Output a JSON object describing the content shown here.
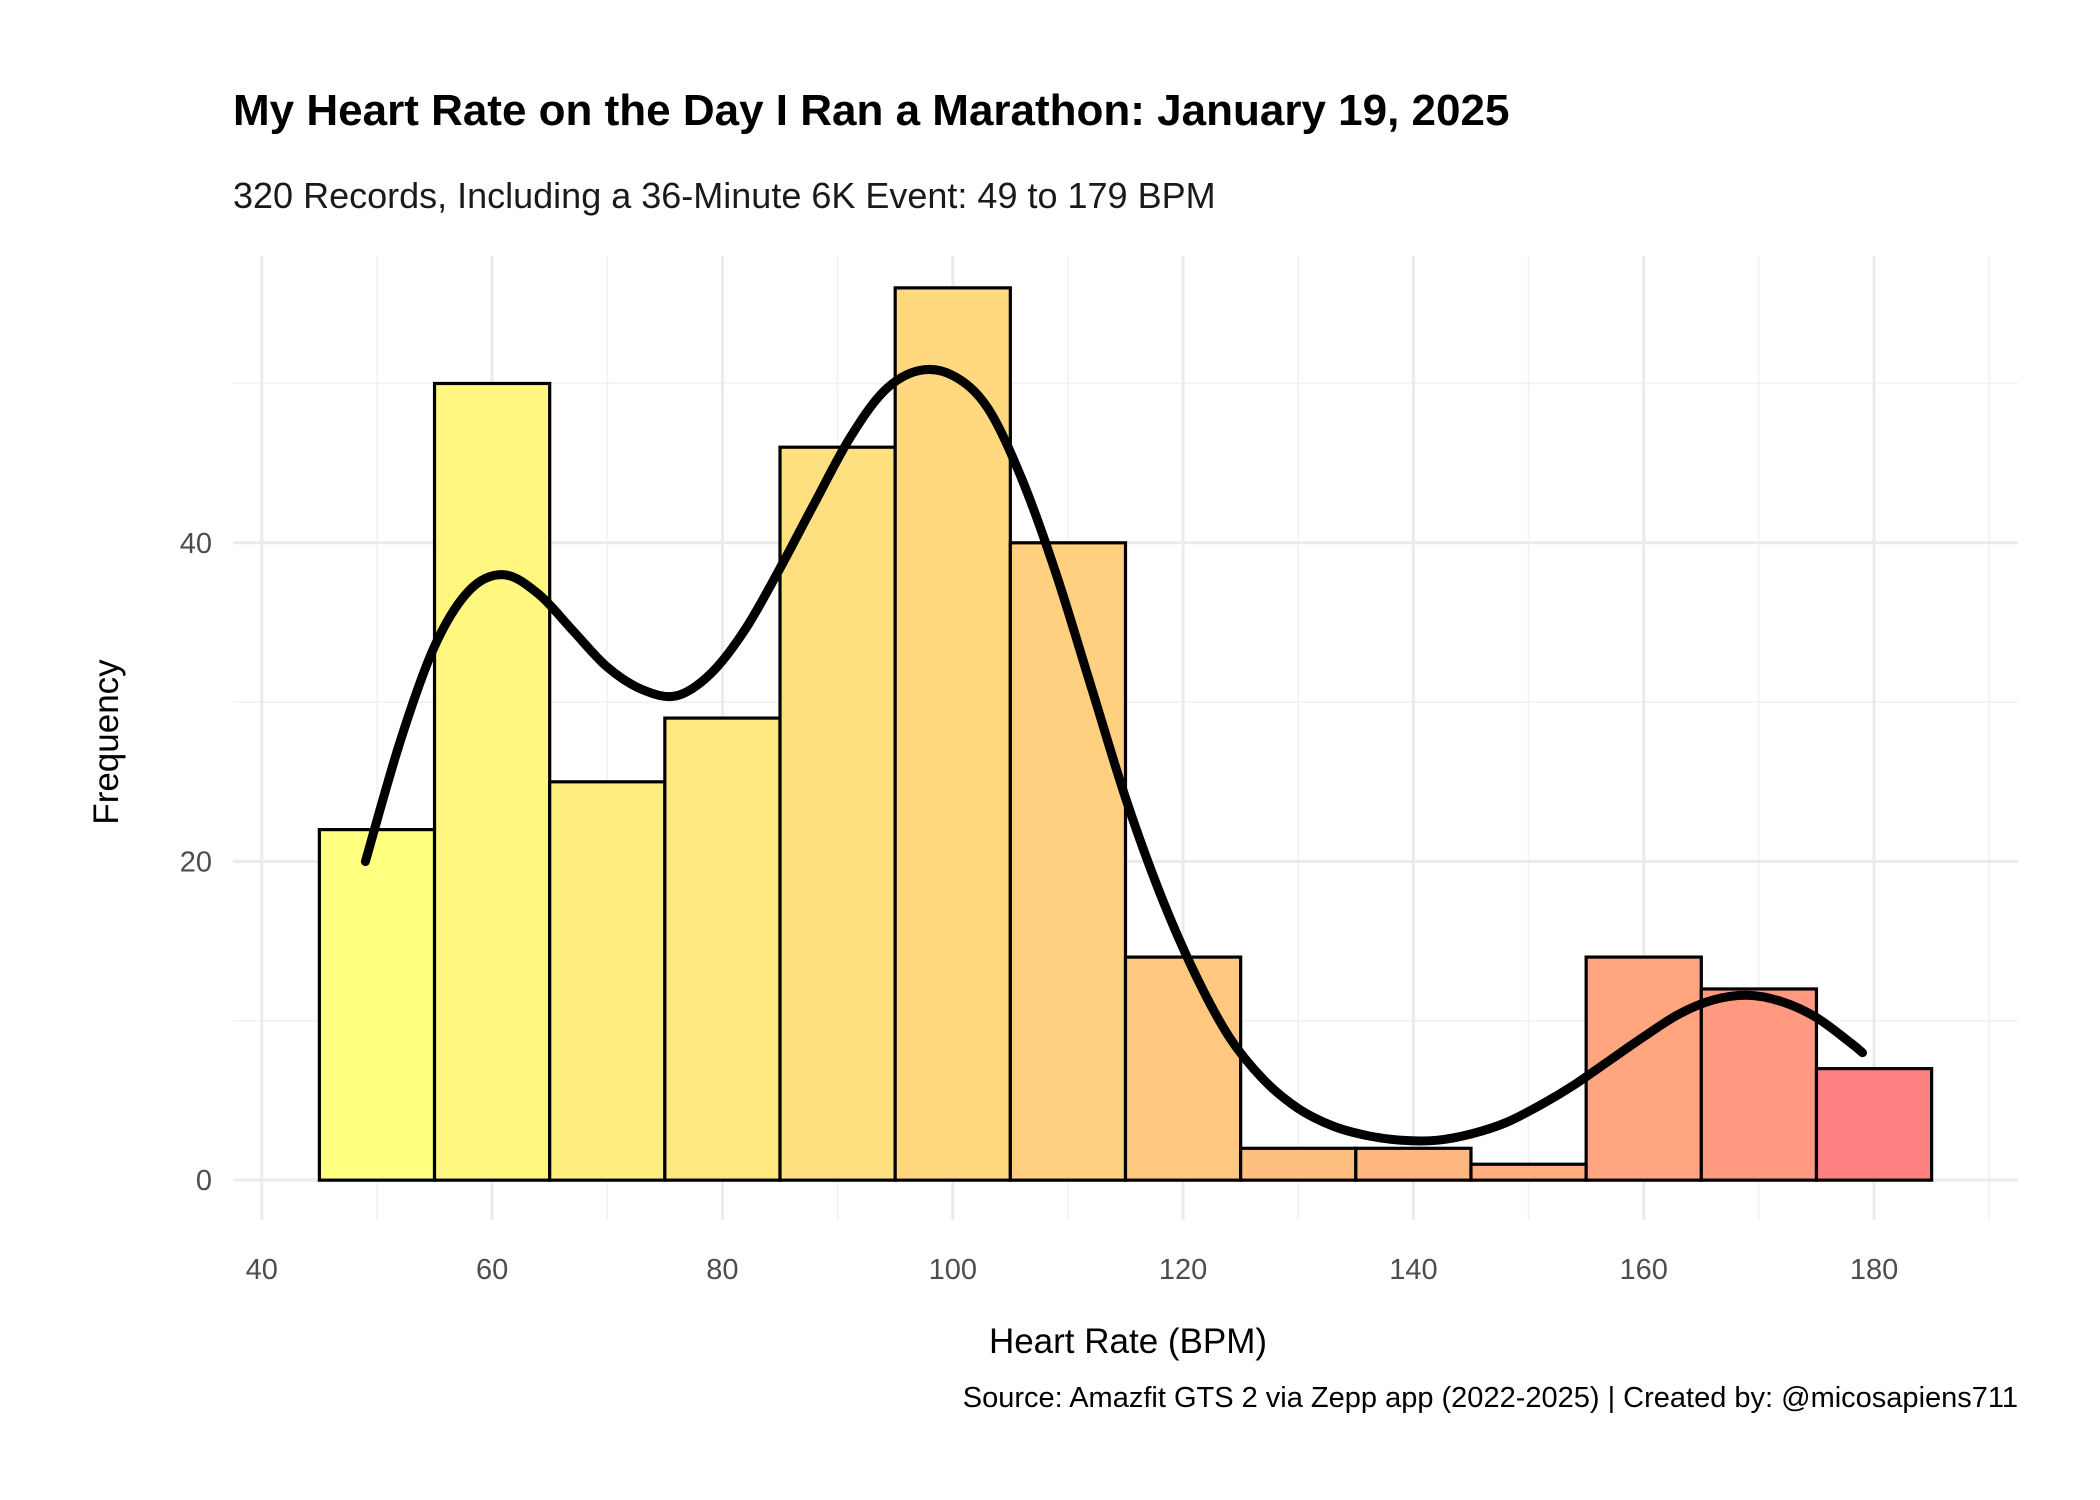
{
  "chart_data": {
    "type": "histogram",
    "title": "My Heart Rate on the Day I Ran a Marathon: January 19, 2025",
    "subtitle": "320 Records, Including a 36-Minute 6K Event: 49 to 179 BPM",
    "xlabel": "Heart Rate (BPM)",
    "ylabel": "Frequency",
    "caption": "Source: Amazfit GTS 2 via Zepp app (2022-2025) | Created by: @micosapiens711",
    "xlim": [
      37.5,
      192.5
    ],
    "ylim": [
      -2.5,
      58
    ],
    "x_ticks": [
      40,
      60,
      80,
      100,
      120,
      140,
      160,
      180
    ],
    "y_ticks": [
      0,
      20,
      40
    ],
    "bin_width": 10,
    "bins": [
      {
        "start": 45,
        "end": 55,
        "count": 22,
        "color": "#ffff80"
      },
      {
        "start": 55,
        "end": 65,
        "count": 50,
        "color": "#fff780"
      },
      {
        "start": 65,
        "end": 75,
        "count": 25,
        "color": "#ffef80"
      },
      {
        "start": 75,
        "end": 85,
        "count": 29,
        "color": "#ffe880"
      },
      {
        "start": 85,
        "end": 95,
        "count": 46,
        "color": "#ffe080"
      },
      {
        "start": 95,
        "end": 105,
        "count": 56,
        "color": "#ffd880"
      },
      {
        "start": 105,
        "end": 115,
        "count": 40,
        "color": "#ffd080"
      },
      {
        "start": 115,
        "end": 125,
        "count": 14,
        "color": "#ffc880"
      },
      {
        "start": 125,
        "end": 135,
        "count": 2,
        "color": "#ffbf80"
      },
      {
        "start": 135,
        "end": 145,
        "count": 2,
        "color": "#ffb780"
      },
      {
        "start": 145,
        "end": 155,
        "count": 1,
        "color": "#ffae80"
      },
      {
        "start": 155,
        "end": 165,
        "count": 14,
        "color": "#ffa580"
      },
      {
        "start": 165,
        "end": 175,
        "count": 12,
        "color": "#ff9a80"
      },
      {
        "start": 175,
        "end": 185,
        "count": 7,
        "color": "#ff8080"
      }
    ],
    "density_curve": {
      "x": [
        49,
        52,
        55,
        58,
        61,
        64,
        67,
        70,
        73,
        76,
        79,
        82,
        85,
        88,
        91,
        94,
        97,
        100,
        103,
        106,
        109,
        112,
        115,
        118,
        121,
        124,
        127,
        130,
        133,
        136,
        139,
        142,
        145,
        148,
        151,
        154,
        157,
        160,
        163,
        166,
        169,
        172,
        175,
        178,
        179
      ],
      "y": [
        20,
        27.5,
        33.5,
        37,
        38,
        36.8,
        34.5,
        32.2,
        30.8,
        30.4,
        31.8,
        34.6,
        38.4,
        42.5,
        46.5,
        49.5,
        50.8,
        50.5,
        48.5,
        44,
        38,
        31,
        24,
        18,
        13,
        9,
        6.3,
        4.5,
        3.4,
        2.8,
        2.5,
        2.5,
        2.9,
        3.6,
        4.7,
        6,
        7.5,
        9,
        10.4,
        11.3,
        11.6,
        11.2,
        10.2,
        8.6,
        8
      ]
    }
  }
}
